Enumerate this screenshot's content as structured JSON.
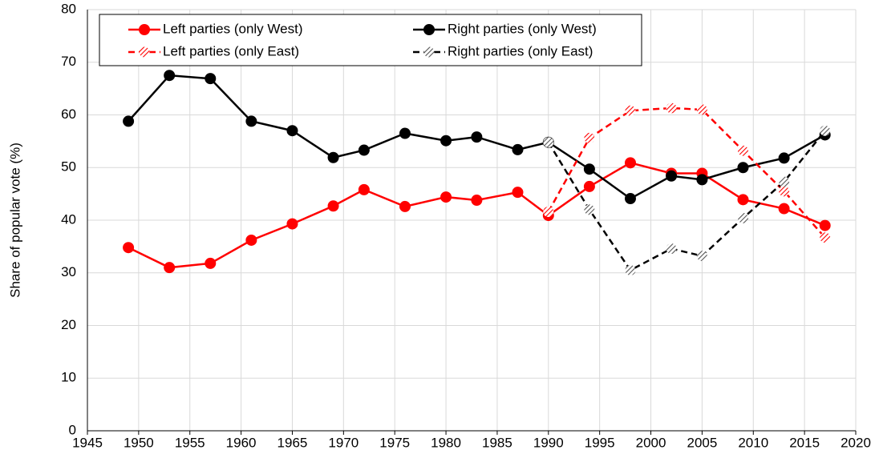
{
  "chart_data": {
    "type": "line",
    "y_label": "Share of popular vote (%)",
    "x": [
      1949,
      1953,
      1957,
      1961,
      1965,
      1969,
      1972,
      1976,
      1980,
      1983,
      1987,
      1990,
      1994,
      1998,
      2002,
      2005,
      2009,
      2013,
      2017
    ],
    "series": [
      {
        "name": "Left parties (only West)",
        "color": "#ff0000",
        "linestyle": "solid",
        "values": [
          34.8,
          31.0,
          31.8,
          36.2,
          39.3,
          42.7,
          45.8,
          42.6,
          44.4,
          43.8,
          45.3,
          40.9,
          46.4,
          50.9,
          48.9,
          48.9,
          43.9,
          42.2,
          39.0
        ]
      },
      {
        "name": "Right parties (only West)",
        "color": "#000000",
        "linestyle": "solid",
        "values": [
          58.8,
          67.5,
          66.9,
          58.8,
          57.0,
          51.9,
          53.3,
          56.5,
          55.1,
          55.8,
          53.4,
          54.8,
          49.7,
          44.1,
          48.4,
          47.7,
          50.0,
          51.8,
          56.2
        ]
      },
      {
        "name": "Left parties (only East)",
        "color": "#ff0000",
        "linestyle": "dashed",
        "values": [
          null,
          null,
          null,
          null,
          null,
          null,
          null,
          null,
          null,
          null,
          null,
          41.6,
          55.6,
          60.8,
          61.3,
          61.0,
          53.2,
          45.5,
          36.7
        ]
      },
      {
        "name": "Right parties (only East)",
        "color": "#000000",
        "linestyle": "dashed",
        "values": [
          null,
          null,
          null,
          null,
          null,
          null,
          null,
          null,
          null,
          null,
          null,
          54.8,
          42.0,
          30.5,
          34.6,
          33.2,
          40.4,
          47.3,
          57.0
        ]
      }
    ],
    "xlim": [
      1945,
      2020
    ],
    "xticks": [
      1945,
      1950,
      1955,
      1960,
      1965,
      1970,
      1975,
      1980,
      1985,
      1990,
      1995,
      2000,
      2005,
      2010,
      2015,
      2020
    ],
    "ylim": [
      0,
      80
    ],
    "yticks": [
      0,
      10,
      20,
      30,
      40,
      50,
      60,
      70,
      80
    ],
    "grid": true,
    "legend": "top"
  }
}
